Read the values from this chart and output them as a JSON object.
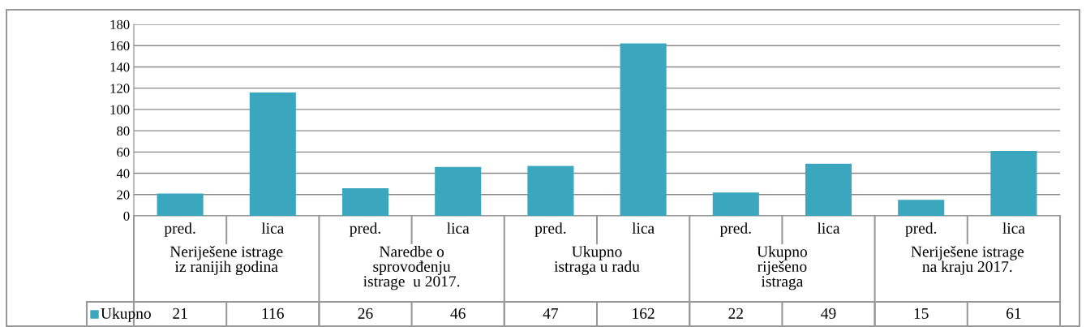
{
  "chart_data": {
    "type": "bar",
    "categories": [
      "pred.",
      "lica",
      "pred.",
      "lica",
      "pred.",
      "lica",
      "pred.",
      "lica",
      "pred.",
      "lica"
    ],
    "series": [
      {
        "name": "Ukupno",
        "color": "#3ba7bf",
        "values": [
          21,
          116,
          26,
          46,
          47,
          162,
          22,
          49,
          15,
          61
        ]
      }
    ],
    "annotations": [
      "Neriješene istrage\niz ranijih godina",
      "Naredbe o\nsprovođenju\nistrage  u 2017.",
      "Ukupno\nistraga u radu",
      "Ukupno\nriješeno\nistraga",
      "Neriješene istrage\nna kraju 2017."
    ],
    "ylim": [
      0,
      180
    ],
    "yticks": [
      0,
      20,
      40,
      60,
      80,
      100,
      120,
      140,
      160,
      180
    ],
    "grid": "y",
    "legend": "bottom",
    "data_labels": true
  }
}
